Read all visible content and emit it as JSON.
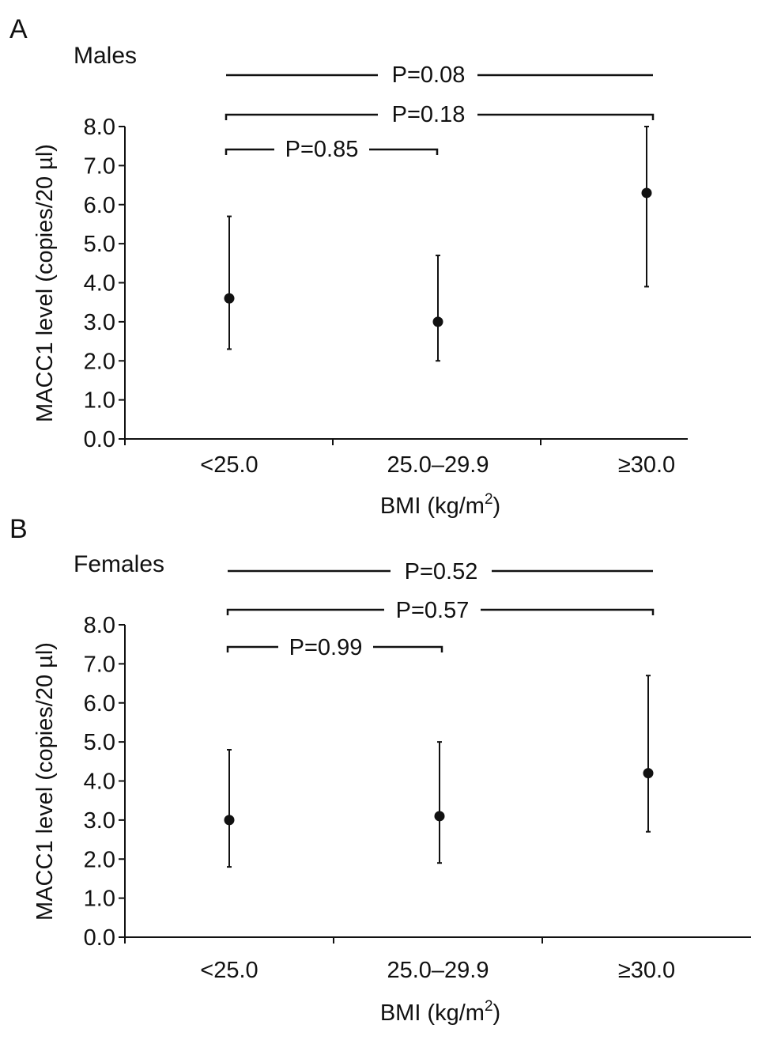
{
  "chart_data": [
    {
      "type": "scatter",
      "panel_letter": "A",
      "title": "Males",
      "categories": [
        "<25.0",
        "25.0–29.9",
        "≥30.0"
      ],
      "values": [
        3.6,
        3.0,
        6.3
      ],
      "error_low": [
        2.3,
        2.0,
        3.9
      ],
      "error_high": [
        5.7,
        4.7,
        8.0
      ],
      "xlabel": "BMI (kg/m",
      "xlabel_sup": "2",
      "xlabel_end": ")",
      "ylabel": "MACC1 level (copies/20 µl)",
      "ylim": [
        0,
        8
      ],
      "yticks": [
        "0.0",
        "1.0",
        "2.0",
        "3.0",
        "4.0",
        "5.0",
        "6.0",
        "7.0",
        "8.0"
      ],
      "comparisons": [
        {
          "from": 0,
          "to": 2,
          "label": "P=0.08",
          "style": "line"
        },
        {
          "from": 0,
          "to": 2,
          "label": "P=0.18",
          "style": "bracket"
        },
        {
          "from": 0,
          "to": 1,
          "label": "P=0.85",
          "style": "bracket"
        }
      ]
    },
    {
      "type": "scatter",
      "panel_letter": "B",
      "title": "Females",
      "categories": [
        "<25.0",
        "25.0–29.9",
        "≥30.0"
      ],
      "values": [
        3.0,
        3.1,
        4.2
      ],
      "error_low": [
        1.8,
        1.9,
        2.7
      ],
      "error_high": [
        4.8,
        5.0,
        6.7
      ],
      "xlabel": "BMI (kg/m",
      "xlabel_sup": "2",
      "xlabel_end": ")",
      "ylabel": "MACC1 level (copies/20 µl)",
      "ylim": [
        0,
        8
      ],
      "yticks": [
        "0.0",
        "1.0",
        "2.0",
        "3.0",
        "4.0",
        "5.0",
        "6.0",
        "7.0",
        "8.0"
      ],
      "comparisons": [
        {
          "from": 0,
          "to": 2,
          "label": "P=0.52",
          "style": "line"
        },
        {
          "from": 0,
          "to": 2,
          "label": "P=0.57",
          "style": "bracket"
        },
        {
          "from": 0,
          "to": 1,
          "label": "P=0.99",
          "style": "bracket"
        }
      ]
    }
  ]
}
